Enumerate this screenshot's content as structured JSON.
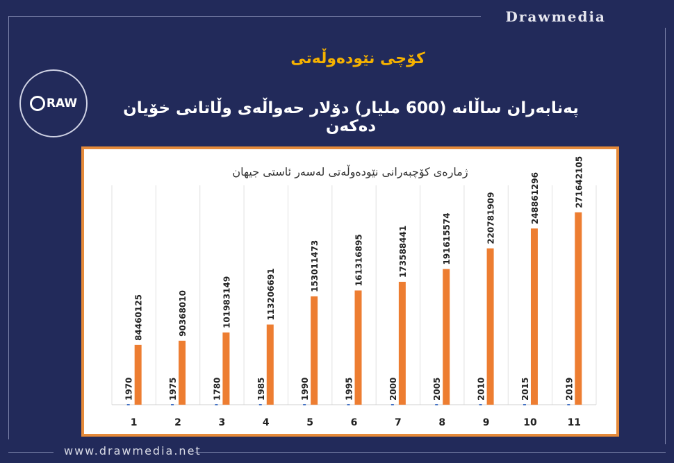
{
  "brand": "Drawmedia",
  "logo_text": "RAW",
  "headline": "کۆچی نێودەوڵەتی",
  "subline": "پەنابەران ساڵانە (600 ملیار) دۆلار حەواڵەی وڵاتانی خۆیان دەکەن",
  "footer_url": "www.drawmedia.net",
  "colors": {
    "background": "#222a5a",
    "accent": "#f5b100",
    "bar_primary": "#ed7d31",
    "bar_secondary": "#4472c4",
    "chart_border": "#e58a3a"
  },
  "chart_data": {
    "type": "bar",
    "title": "ژمارەی کۆچبەرانی نێودەوڵەتی لەسەر ئاستی جیهان",
    "categories": [
      "1",
      "2",
      "3",
      "4",
      "5",
      "6",
      "7",
      "8",
      "9",
      "10",
      "11"
    ],
    "series": [
      {
        "values": [
          1970,
          1975,
          1780,
          1985,
          1990,
          1995,
          2000,
          2005,
          2010,
          2015,
          2019
        ]
      },
      {
        "values": [
          84460125,
          90368010,
          101983149,
          113206691,
          153011473,
          161316895,
          173588441,
          191615574,
          220781909,
          248861296,
          271642105
        ]
      }
    ],
    "ylim": [
      0,
      300000000
    ],
    "grid": true,
    "legend": "none"
  }
}
